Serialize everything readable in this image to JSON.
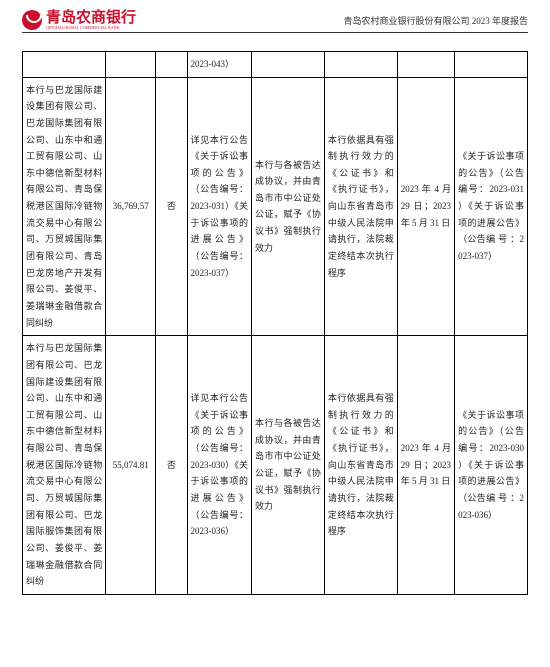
{
  "header": {
    "bank_name_cn": "青岛农商银行",
    "bank_name_en": "QINGDAO RURAL COMMERCIAL BANK",
    "report_title": "青岛农村商业银行股份有限公司 2023 年度报告",
    "brand_color": "#c8102e"
  },
  "table": {
    "row0": {
      "c4": "2023-043）"
    },
    "row1": {
      "c1": "本行与巴龙国际建设集团有限公司、巴龙国际集团有限公司、山东中和通工贸有限公司、山东中德信新型材料有限公司、青岛保税港区国际冷链物流交易中心有限公司、万贸城国际集团有限公司、青岛巴龙房地产开发有限公司、姜俊平、姜瑞琳金融借款合同纠纷",
      "c2": "36,769.57",
      "c3": "否",
      "c4": "详见本行公告《关于诉讼事项的公告》（公告编号：2023-031）《关于诉讼事项的进展公告》（公告编号：2023-037）",
      "c5": "本行与各被告达成协议，并由青岛市市中公证处公证，赋予《协议书》强制执行效力",
      "c6": "本行依据具有强制执行效力的《公证书》和《执行证书》，向山东省青岛市中级人民法院申请执行，法院裁定终结本次执行程序",
      "c7": "2023 年 4 月 29 日；2023 年 5 月 31 日",
      "c8": "《关于诉讼事项的公告》（公告编号：2023-031 ）《关于诉讼事项的进展公告》（公告编 号 ：2023-037）"
    },
    "row2": {
      "c1": "本行与巴龙国际集团有限公司、巴龙国际建设集团有限公司、山东中和通工贸有限公司、山东中德信新型材料有限公司、青岛保税港区国际冷链物流交易中心有限公司、万贸城国际集团有限公司、巴龙国际服饰集团有限公司、姜俊平、姜瑞琳金融借款合同纠纷",
      "c2": "55,074.81",
      "c3": "否",
      "c4": "详见本行公告《关于诉讼事项的公告》（公告编号：2023-030）《关于诉讼事项的进展公告》（公告编号：2023-036）",
      "c5": "本行与各被告达成协议，并由青岛市市中公证处公证，赋予《协议书》强制执行效力",
      "c6": "本行依据具有强制执行效力的《公证书》和《执行证书》，向山东省青岛市中级人民法院申请执行，法院裁定终结本次执行程序",
      "c7": "2023 年 4 月 29 日；2023 年 5 月 31 日",
      "c8": "《关于诉讼事项的公告》（公告编号：2023-030 ）《关于诉讼事项的进展公告》（公告编 号 ：2023-036）"
    }
  }
}
